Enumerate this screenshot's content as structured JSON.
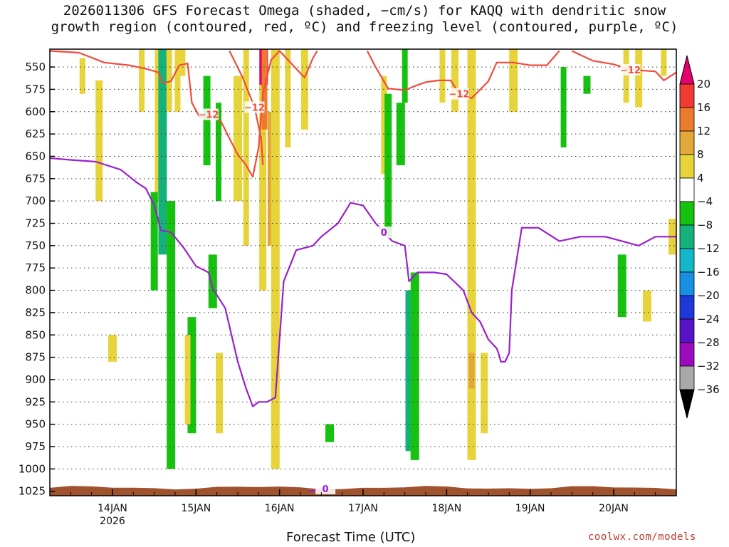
{
  "title_line1": "2026011306 GFS Forecast Omega (shaded, −cm/s) for KAQQ with dendritic snow",
  "title_line2": "growth region (contoured, red, ºC) and freezing level (contoured, purple, ºC)",
  "credit": "coolwx.com/models",
  "chart_data": {
    "type": "heatmap",
    "title": "2026011306 GFS Forecast Omega (shaded, −cm/s) for KAQQ with dendritic snow growth region (contoured, red, ºC) and freezing level (contoured, purple, ºC)",
    "xlabel": "Forecast Time (UTC)",
    "ylabel": "",
    "x_ticks": [
      "14JAN",
      "15JAN",
      "16JAN",
      "17JAN",
      "18JAN",
      "19JAN",
      "20JAN"
    ],
    "x_tick_year": "2026",
    "x_range_days": [
      13.25,
      20.75
    ],
    "y_ticks": [
      550,
      575,
      600,
      625,
      650,
      675,
      700,
      725,
      750,
      775,
      800,
      825,
      850,
      875,
      900,
      925,
      950,
      975,
      1000,
      1025
    ],
    "y_range_hpa": [
      530,
      1030
    ],
    "colorbar": {
      "labels": [
        "20",
        "16",
        "12",
        "8",
        "4",
        "−4",
        "−8",
        "−12",
        "−16",
        "−20",
        "−24",
        "−28",
        "−32",
        "−36"
      ],
      "colors": [
        "#e4006c",
        "#f03a32",
        "#ee7b2c",
        "#e3a83a",
        "#e6d43a",
        "#ffffff",
        "#17c10f",
        "#14b27a",
        "#12b8c8",
        "#178fe3",
        "#1f38d8",
        "#5a12c6",
        "#9b0bbd",
        "#a9a9a9",
        "#000000"
      ]
    },
    "omega_cells": [
      {
        "day": 13.64,
        "p0": 540,
        "p1": 580,
        "v": 5
      },
      {
        "day": 13.84,
        "p0": 565,
        "p1": 700,
        "v": 5
      },
      {
        "day": 14.0,
        "p0": 850,
        "p1": 880,
        "v": 5
      },
      {
        "day": 14.35,
        "p0": 530,
        "p1": 600,
        "v": 6
      },
      {
        "day": 14.55,
        "p0": 530,
        "p1": 700,
        "v": 5
      },
      {
        "day": 14.6,
        "p0": 530,
        "p1": 760,
        "v": -10
      },
      {
        "day": 14.68,
        "p0": 530,
        "p1": 600,
        "v": 5
      },
      {
        "day": 14.5,
        "p0": 690,
        "p1": 800,
        "v": -6
      },
      {
        "day": 14.7,
        "p0": 700,
        "p1": 1000,
        "v": -6
      },
      {
        "day": 14.78,
        "p0": 530,
        "p1": 600,
        "v": 5
      },
      {
        "day": 14.83,
        "p0": 530,
        "p1": 560,
        "v": 5
      },
      {
        "day": 14.95,
        "p0": 830,
        "p1": 960,
        "v": -6
      },
      {
        "day": 14.9,
        "p0": 850,
        "p1": 950,
        "v": 5
      },
      {
        "day": 15.13,
        "p0": 560,
        "p1": 660,
        "v": -6
      },
      {
        "day": 15.2,
        "p0": 760,
        "p1": 820,
        "v": -6
      },
      {
        "day": 15.27,
        "p0": 590,
        "p1": 700,
        "v": -6
      },
      {
        "day": 15.28,
        "p0": 870,
        "p1": 960,
        "v": 5
      },
      {
        "day": 15.5,
        "p0": 560,
        "p1": 700,
        "v": 5
      },
      {
        "day": 15.6,
        "p0": 530,
        "p1": 750,
        "v": 5
      },
      {
        "day": 15.8,
        "p0": 530,
        "p1": 800,
        "v": 6
      },
      {
        "day": 15.81,
        "p0": 530,
        "p1": 570,
        "v": 20
      },
      {
        "day": 15.82,
        "p0": 530,
        "p1": 620,
        "v": 14
      },
      {
        "day": 15.9,
        "p0": 600,
        "p1": 750,
        "v": 10
      },
      {
        "day": 15.95,
        "p0": 530,
        "p1": 1000,
        "v": 6
      },
      {
        "day": 16.1,
        "p0": 530,
        "p1": 640,
        "v": 5
      },
      {
        "day": 16.3,
        "p0": 530,
        "p1": 620,
        "v": 5
      },
      {
        "day": 16.6,
        "p0": 950,
        "p1": 970,
        "v": -6
      },
      {
        "day": 17.25,
        "p0": 560,
        "p1": 670,
        "v": 5
      },
      {
        "day": 17.3,
        "p0": 580,
        "p1": 740,
        "v": -6
      },
      {
        "day": 17.45,
        "p0": 590,
        "p1": 660,
        "v": -6
      },
      {
        "day": 17.5,
        "p0": 530,
        "p1": 590,
        "v": -6
      },
      {
        "day": 17.55,
        "p0": 800,
        "p1": 980,
        "v": -8
      },
      {
        "day": 17.62,
        "p0": 780,
        "p1": 990,
        "v": -6
      },
      {
        "day": 17.95,
        "p0": 530,
        "p1": 590,
        "v": 5
      },
      {
        "day": 18.1,
        "p0": 530,
        "p1": 600,
        "v": 5
      },
      {
        "day": 18.3,
        "p0": 530,
        "p1": 990,
        "v": 5
      },
      {
        "day": 18.3,
        "p0": 870,
        "p1": 910,
        "v": 9
      },
      {
        "day": 18.45,
        "p0": 870,
        "p1": 960,
        "v": 5
      },
      {
        "day": 18.8,
        "p0": 530,
        "p1": 600,
        "v": 5
      },
      {
        "day": 19.4,
        "p0": 550,
        "p1": 640,
        "v": -6
      },
      {
        "day": 19.68,
        "p0": 560,
        "p1": 580,
        "v": -6
      },
      {
        "day": 20.1,
        "p0": 760,
        "p1": 830,
        "v": -6
      },
      {
        "day": 20.15,
        "p0": 530,
        "p1": 590,
        "v": 5
      },
      {
        "day": 20.3,
        "p0": 530,
        "p1": 595,
        "v": 5
      },
      {
        "day": 20.4,
        "p0": 800,
        "p1": 835,
        "v": 5
      },
      {
        "day": 20.6,
        "p0": 530,
        "p1": 560,
        "v": 5
      },
      {
        "day": 20.7,
        "p0": 720,
        "p1": 760,
        "v": 5
      }
    ],
    "dgz_contours": [
      {
        "label": "−12",
        "points": [
          [
            13.25,
            532
          ],
          [
            13.6,
            534
          ],
          [
            13.9,
            545
          ],
          [
            14.2,
            548
          ],
          [
            14.4,
            552
          ],
          [
            14.55,
            556
          ],
          [
            14.6,
            568
          ],
          [
            14.7,
            566
          ],
          [
            14.8,
            548
          ],
          [
            14.9,
            546
          ],
          [
            14.95,
            590
          ],
          [
            15.05,
            607
          ],
          [
            15.15,
            603
          ],
          [
            15.3,
            611
          ],
          [
            15.4,
            630
          ],
          [
            15.5,
            648
          ],
          [
            15.6,
            660
          ],
          [
            15.68,
            673
          ],
          [
            15.75,
            640
          ],
          [
            15.8,
            580
          ],
          [
            15.9,
            542
          ],
          [
            16.0,
            532
          ],
          [
            16.3,
            562
          ],
          [
            16.4,
            540
          ],
          [
            16.45,
            532
          ]
        ]
      },
      {
        "label": "−12",
        "points": [
          [
            15.4,
            532
          ],
          [
            15.55,
            560
          ],
          [
            15.7,
            595
          ],
          [
            15.78,
            630
          ],
          [
            15.8,
            660
          ]
        ]
      },
      {
        "label": "−12",
        "points": [
          [
            17.05,
            532
          ],
          [
            17.15,
            550
          ],
          [
            17.3,
            574
          ],
          [
            17.5,
            576
          ],
          [
            17.6,
            572
          ],
          [
            17.75,
            567
          ],
          [
            17.9,
            565
          ],
          [
            18.05,
            565
          ],
          [
            18.15,
            580
          ],
          [
            18.3,
            585
          ],
          [
            18.5,
            566
          ],
          [
            18.6,
            545
          ],
          [
            18.8,
            545
          ],
          [
            19.0,
            548
          ],
          [
            19.2,
            548
          ],
          [
            19.35,
            532
          ]
        ]
      },
      {
        "label": "−12",
        "points": [
          [
            19.5,
            532
          ],
          [
            19.75,
            543
          ],
          [
            20.0,
            547
          ],
          [
            20.2,
            553
          ],
          [
            20.5,
            555
          ],
          [
            20.6,
            565
          ],
          [
            20.75,
            556
          ]
        ]
      }
    ],
    "freezing_contours": [
      {
        "label": "0",
        "points": [
          [
            13.25,
            652
          ],
          [
            13.5,
            654
          ],
          [
            13.8,
            656
          ],
          [
            14.1,
            665
          ],
          [
            14.3,
            680
          ],
          [
            14.4,
            686
          ],
          [
            14.5,
            705
          ],
          [
            14.58,
            733
          ],
          [
            14.7,
            735
          ],
          [
            14.85,
            752
          ],
          [
            15.0,
            773
          ],
          [
            15.15,
            780
          ],
          [
            15.2,
            798
          ],
          [
            15.35,
            820
          ],
          [
            15.5,
            880
          ],
          [
            15.6,
            910
          ],
          [
            15.68,
            930
          ],
          [
            15.75,
            925
          ],
          [
            15.85,
            925
          ],
          [
            15.95,
            920
          ],
          [
            16.05,
            790
          ],
          [
            16.2,
            755
          ],
          [
            16.4,
            750
          ],
          [
            16.5,
            740
          ],
          [
            16.7,
            725
          ],
          [
            16.85,
            702
          ],
          [
            17.0,
            705
          ],
          [
            17.15,
            725
          ],
          [
            17.25,
            735
          ],
          [
            17.35,
            745
          ],
          [
            17.5,
            750
          ],
          [
            17.55,
            790
          ],
          [
            17.65,
            780
          ],
          [
            17.75,
            780
          ],
          [
            17.85,
            780
          ],
          [
            18.0,
            782
          ],
          [
            18.2,
            800
          ],
          [
            18.3,
            825
          ],
          [
            18.4,
            835
          ],
          [
            18.5,
            855
          ],
          [
            18.6,
            865
          ],
          [
            18.62,
            870
          ],
          [
            18.65,
            880
          ],
          [
            18.7,
            880
          ],
          [
            18.75,
            870
          ],
          [
            18.78,
            800
          ],
          [
            18.9,
            730
          ],
          [
            19.1,
            730
          ],
          [
            19.35,
            745
          ],
          [
            19.6,
            740
          ],
          [
            19.9,
            740
          ],
          [
            20.1,
            745
          ],
          [
            20.3,
            750
          ],
          [
            20.5,
            740
          ],
          [
            20.65,
            740
          ],
          [
            20.75,
            740
          ]
        ]
      },
      {
        "label": "0",
        "points": [
          [
            16.35,
            1025
          ],
          [
            16.55,
            1022
          ]
        ]
      }
    ],
    "terrain_top_hpa": 1018
  }
}
